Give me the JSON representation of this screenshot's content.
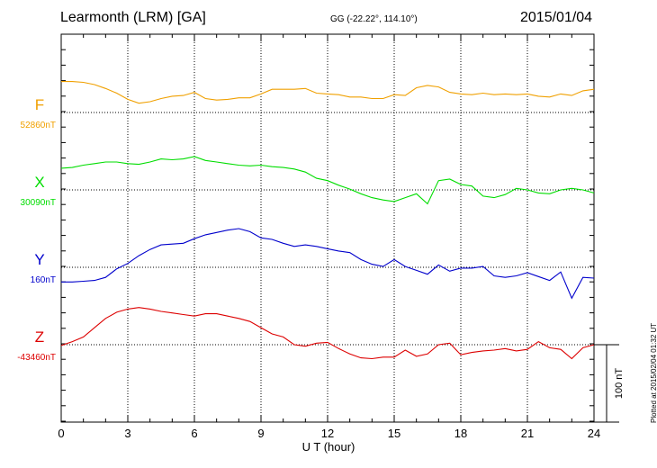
{
  "header": {
    "station": "Learmonth (LRM)  [GA]",
    "coords": "GG (-22.22°, 114.10°)",
    "date": "2015/01/04"
  },
  "footer": {
    "plotted": "Plotted at 2015/02/04 01:32 UT"
  },
  "chart_data": {
    "type": "line",
    "xlabel": "U T (hour)",
    "xlim": [
      0,
      24
    ],
    "xticks": [
      "0",
      "3",
      "6",
      "9",
      "12",
      "15",
      "18",
      "21",
      "24"
    ],
    "scale_bar_label": "100 nT",
    "grid": true,
    "series": [
      {
        "name": "F",
        "baseline_label": "52860nT",
        "color": "#f0a000",
        "x": [
          0,
          0.5,
          1,
          1.5,
          2,
          2.5,
          3,
          3.5,
          4,
          4.5,
          5,
          5.5,
          6,
          6.5,
          7,
          7.5,
          8,
          8.5,
          9,
          9.5,
          10,
          10.5,
          11,
          11.5,
          12,
          12.5,
          13,
          13.5,
          14,
          14.5,
          15,
          15.5,
          16,
          16.5,
          17,
          17.5,
          18,
          18.5,
          19,
          19.5,
          20,
          20.5,
          21,
          21.5,
          22,
          22.5,
          23,
          23.5,
          24
        ],
        "y": [
          40,
          40,
          39,
          36,
          31,
          25,
          17,
          12,
          14,
          18,
          21,
          22,
          26,
          18,
          16,
          17,
          19,
          19,
          24,
          30,
          30,
          30,
          31,
          25,
          24,
          23,
          20,
          20,
          18,
          18,
          23,
          22,
          32,
          35,
          33,
          26,
          24,
          23,
          25,
          23,
          24,
          23,
          24,
          21,
          20,
          24,
          22,
          28,
          30
        ]
      },
      {
        "name": "X",
        "baseline_label": "30090nT",
        "color": "#00dd00",
        "x": [
          0,
          0.5,
          1,
          1.5,
          2,
          2.5,
          3,
          3.5,
          4,
          4.5,
          5,
          5.5,
          6,
          6.5,
          7,
          7.5,
          8,
          8.5,
          9,
          9.5,
          10,
          10.5,
          11,
          11.5,
          12,
          12.5,
          13,
          13.5,
          14,
          14.5,
          15,
          15.5,
          16,
          16.5,
          17,
          17.5,
          18,
          18.5,
          19,
          19.5,
          20,
          20.5,
          21,
          21.5,
          22,
          22.5,
          23,
          23.5,
          24
        ],
        "y": [
          28,
          29,
          32,
          34,
          36,
          36,
          34,
          33,
          36,
          40,
          39,
          40,
          43,
          38,
          36,
          34,
          32,
          31,
          32,
          30,
          29,
          27,
          23,
          15,
          12,
          6,
          1,
          -5,
          -10,
          -13,
          -15,
          -10,
          -5,
          -18,
          12,
          14,
          7,
          5,
          -8,
          -10,
          -6,
          2,
          0,
          -4,
          -5,
          0,
          2,
          0,
          -4
        ]
      },
      {
        "name": "Y",
        "baseline_label": "160nT",
        "color": "#0000cc",
        "x": [
          0,
          0.5,
          1,
          1.5,
          2,
          2.5,
          3,
          3.5,
          4,
          4.5,
          5,
          5.5,
          6,
          6.5,
          7,
          7.5,
          8,
          8.5,
          9,
          9.5,
          10,
          10.5,
          11,
          11.5,
          12,
          12.5,
          13,
          13.5,
          14,
          14.5,
          15,
          15.5,
          16,
          16.5,
          17,
          17.5,
          18,
          18.5,
          19,
          19.5,
          20,
          20.5,
          21,
          21.5,
          22,
          22.5,
          23,
          23.5,
          24
        ],
        "y": [
          -19,
          -19,
          -18,
          -17,
          -13,
          -2,
          5,
          15,
          23,
          29,
          30,
          31,
          37,
          42,
          45,
          48,
          50,
          46,
          38,
          36,
          31,
          27,
          29,
          27,
          24,
          21,
          19,
          10,
          4,
          1,
          10,
          1,
          -4,
          -9,
          3,
          -5,
          -1,
          -1,
          1,
          -11,
          -13,
          -11,
          -7,
          -12,
          -17,
          -6,
          -40,
          -13,
          -14
        ]
      },
      {
        "name": "Z",
        "baseline_label": "-43460nT",
        "color": "#dd0000",
        "x": [
          0,
          0.5,
          1,
          1.5,
          2,
          2.5,
          3,
          3.5,
          4,
          4.5,
          5,
          5.5,
          6,
          6.5,
          7,
          7.5,
          8,
          8.5,
          9,
          9.5,
          10,
          10.5,
          11,
          11.5,
          12,
          12.5,
          13,
          13.5,
          14,
          14.5,
          15,
          15.5,
          16,
          16.5,
          17,
          17.5,
          18,
          18.5,
          19,
          19.5,
          20,
          20.5,
          21,
          21.5,
          22,
          22.5,
          23,
          23.5,
          24
        ],
        "y": [
          -1,
          4,
          10,
          22,
          34,
          42,
          46,
          48,
          46,
          43,
          41,
          39,
          37,
          40,
          40,
          37,
          34,
          30,
          22,
          14,
          10,
          0,
          -2,
          2,
          3,
          -5,
          -12,
          -17,
          -18,
          -16,
          -16,
          -7,
          -15,
          -12,
          0,
          2,
          -13,
          -10,
          -8,
          -7,
          -5,
          -8,
          -6,
          4,
          -4,
          -6,
          -18,
          -4,
          0
        ]
      }
    ]
  }
}
